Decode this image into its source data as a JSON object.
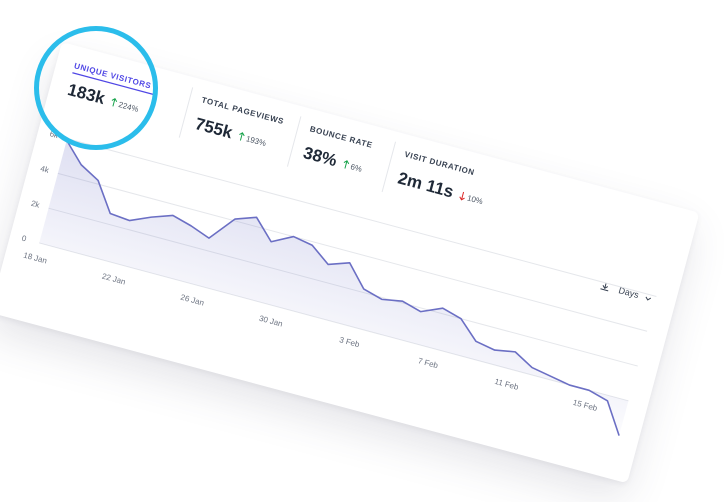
{
  "stats": [
    {
      "label": "UNIQUE VISITORS",
      "value": "183k",
      "change": "224%",
      "direction": "up"
    },
    {
      "label": "TOTAL PAGEVIEWS",
      "value": "755k",
      "change": "193%",
      "direction": "up"
    },
    {
      "label": "BOUNCE RATE",
      "value": "38%",
      "change": "6%",
      "direction": "up"
    },
    {
      "label": "VISIT DURATION",
      "value": "2m 11s",
      "change": "10%",
      "direction": "down"
    }
  ],
  "interval": "Days",
  "chart_data": {
    "type": "line",
    "categories": [
      "18 Jan",
      null,
      null,
      null,
      "22 Jan",
      null,
      null,
      null,
      "26 Jan",
      null,
      null,
      null,
      "30 Jan",
      null,
      null,
      null,
      "3 Feb",
      null,
      null,
      null,
      "7 Feb",
      null,
      null,
      null,
      "11 Feb",
      null,
      null,
      null,
      "15 Feb",
      null,
      null
    ],
    "series": [
      {
        "name": "Visitors",
        "color": "#6b6fc4",
        "values": [
          5900,
          4800,
          4200,
          2600,
          2500,
          3000,
          3400,
          3100,
          2700,
          4100,
          4500,
          3400,
          4000,
          3800,
          3000,
          3400,
          2200,
          1900,
          2100,
          1800,
          2300,
          2000,
          1000,
          800,
          1000,
          400,
          200,
          0,
          0,
          -300,
          -2000
        ]
      }
    ],
    "ylim": [
      0,
      6000
    ],
    "yticks": [
      {
        "value": 0,
        "label": "0"
      },
      {
        "value": 2000,
        "label": "2k"
      },
      {
        "value": 4000,
        "label": "4k"
      },
      {
        "value": 6000,
        "label": "6k"
      }
    ],
    "grid": true
  }
}
